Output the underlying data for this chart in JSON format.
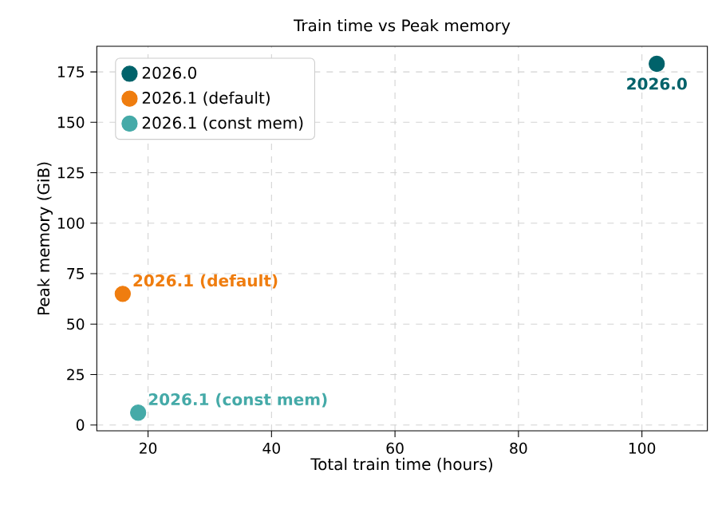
{
  "chart_data": {
    "type": "scatter",
    "title": "Train time vs Peak memory",
    "xlabel": "Total train time (hours)",
    "ylabel": "Peak memory (GiB)",
    "series": [
      {
        "name": "2026.0",
        "color": "#00626a",
        "x": [
          102.4
        ],
        "values": [
          179
        ]
      },
      {
        "name": "2026.1 (default)",
        "color": "#ef7d0f",
        "x": [
          15.9
        ],
        "values": [
          65
        ]
      },
      {
        "name": "2026.1 (const mem)",
        "color": "#45aaa8",
        "x": [
          18.4
        ],
        "values": [
          6.1
        ]
      }
    ],
    "annotations": [
      {
        "text": "2026.0",
        "x": 102.4,
        "y": 179
      },
      {
        "text": "2026.1 (default)",
        "x": 15.9,
        "y": 65
      },
      {
        "text": "2026.1 (const mem)",
        "x": 18.4,
        "y": 6.1
      }
    ],
    "xlim": [
      11.7,
      110.6
    ],
    "ylim": [
      -2.9,
      187.7
    ],
    "xticks": [
      20,
      40,
      60,
      80,
      100
    ],
    "yticks": [
      0,
      25,
      50,
      75,
      100,
      125,
      150,
      175
    ],
    "grid": true,
    "legend": "top left"
  }
}
